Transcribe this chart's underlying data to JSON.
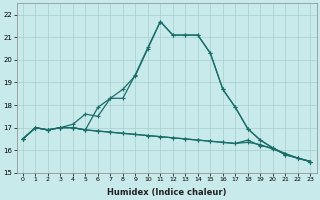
{
  "xlabel": "Humidex (Indice chaleur)",
  "bg_color": "#c8eaea",
  "grid_color": "#a8cece",
  "line_color": "#1a6e6a",
  "x_values": [
    0,
    1,
    2,
    3,
    4,
    5,
    6,
    7,
    8,
    9,
    10,
    11,
    12,
    13,
    14,
    15,
    16,
    17,
    18,
    19,
    20,
    21,
    22,
    23
  ],
  "series_high1": [
    16.5,
    17.0,
    16.9,
    17.0,
    17.15,
    17.6,
    17.5,
    18.3,
    18.7,
    19.3,
    20.5,
    21.7,
    21.1,
    21.1,
    21.1,
    20.3,
    18.7,
    17.9,
    16.95,
    16.45,
    16.1,
    15.8,
    15.65,
    15.5
  ],
  "series_high2": [
    16.5,
    17.0,
    16.9,
    17.0,
    17.0,
    16.9,
    17.9,
    18.3,
    18.3,
    19.35,
    20.55,
    21.7,
    21.1,
    21.1,
    21.1,
    20.3,
    18.7,
    17.9,
    16.95,
    16.45,
    16.1,
    15.8,
    15.65,
    15.5
  ],
  "series_flat1": [
    16.5,
    17.0,
    16.9,
    17.0,
    17.0,
    16.9,
    16.85,
    16.8,
    16.75,
    16.7,
    16.65,
    16.6,
    16.55,
    16.5,
    16.45,
    16.4,
    16.35,
    16.3,
    16.45,
    16.2,
    16.1,
    15.85,
    15.65,
    15.5
  ],
  "series_flat2": [
    16.5,
    17.0,
    16.9,
    17.0,
    17.0,
    16.9,
    16.85,
    16.8,
    16.75,
    16.7,
    16.65,
    16.6,
    16.55,
    16.5,
    16.45,
    16.4,
    16.35,
    16.3,
    16.35,
    16.25,
    16.05,
    15.85,
    15.65,
    15.5
  ],
  "ylim": [
    15,
    22.5
  ],
  "xlim": [
    -0.5,
    23.5
  ],
  "yticks": [
    15,
    16,
    17,
    18,
    19,
    20,
    21,
    22
  ],
  "xticks": [
    0,
    1,
    2,
    3,
    4,
    5,
    6,
    7,
    8,
    9,
    10,
    11,
    12,
    13,
    14,
    15,
    16,
    17,
    18,
    19,
    20,
    21,
    22,
    23
  ]
}
